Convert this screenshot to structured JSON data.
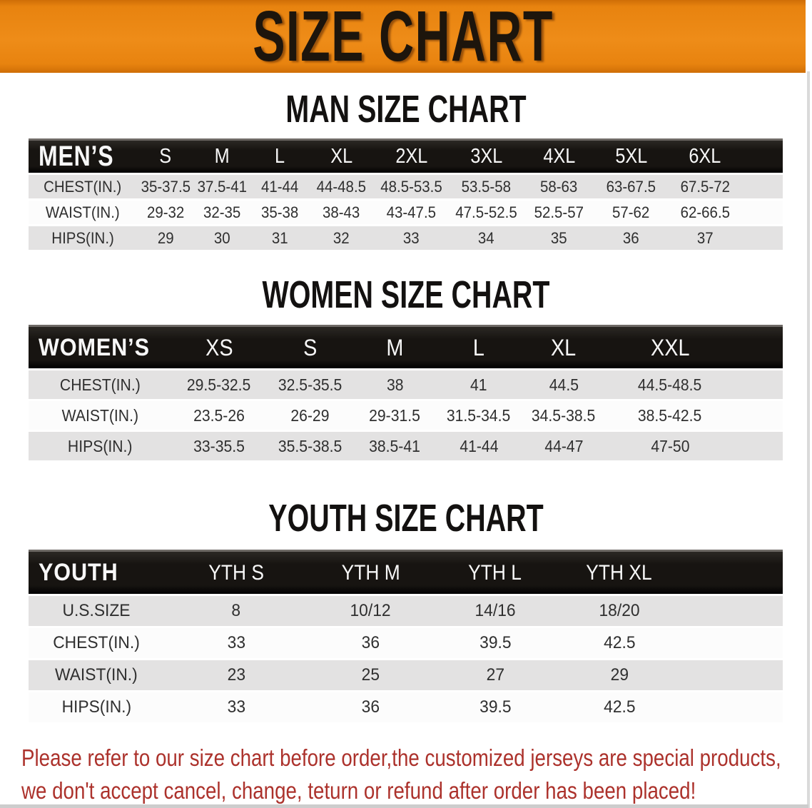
{
  "banner": {
    "title": "SIZE CHART"
  },
  "sections": [
    {
      "title": "MAN SIZE CHART",
      "table": {
        "label": "MEN’S",
        "sizes": [
          "S",
          "M",
          "L",
          "XL",
          "2XL",
          "3XL",
          "4XL",
          "5XL",
          "6XL"
        ],
        "rows": [
          {
            "label": "CHEST(IN.)",
            "values": [
              "35-37.5",
              "37.5-41",
              "41-44",
              "44-48.5",
              "48.5-53.5",
              "53.5-58",
              "58-63",
              "63-67.5",
              "67.5-72"
            ]
          },
          {
            "label": "WAIST(IN.)",
            "values": [
              "29-32",
              "32-35",
              "35-38",
              "38-43",
              "43-47.5",
              "47.5-52.5",
              "52.5-57",
              "57-62",
              "62-66.5"
            ]
          },
          {
            "label": "HIPS(IN.)",
            "values": [
              "29",
              "30",
              "31",
              "32",
              "33",
              "34",
              "35",
              "36",
              "37"
            ]
          }
        ]
      }
    },
    {
      "title": "WOMEN SIZE CHART",
      "table": {
        "label": "WOMEN’S",
        "sizes": [
          "XS",
          "S",
          "M",
          "L",
          "XL",
          "XXL"
        ],
        "rows": [
          {
            "label": "CHEST(IN.)",
            "values": [
              "29.5-32.5",
              "32.5-35.5",
              "38",
              "41",
              "44.5",
              "44.5-48.5"
            ]
          },
          {
            "label": "WAIST(IN.)",
            "values": [
              "23.5-26",
              "26-29",
              "29-31.5",
              "31.5-34.5",
              "34.5-38.5",
              "38.5-42.5"
            ]
          },
          {
            "label": "HIPS(IN.)",
            "values": [
              "33-35.5",
              "35.5-38.5",
              "38.5-41",
              "41-44",
              "44-47",
              "47-50"
            ]
          }
        ]
      }
    },
    {
      "title": "YOUTH SIZE CHART",
      "table": {
        "label": "YOUTH",
        "sizes": [
          "YTH S",
          "YTH M",
          "YTH L",
          "YTH XL"
        ],
        "rows": [
          {
            "label": "U.S.SIZE",
            "values": [
              "8",
              "10/12",
              "14/16",
              "18/20"
            ]
          },
          {
            "label": "CHEST(IN.)",
            "values": [
              "33",
              "36",
              "39.5",
              "42.5"
            ]
          },
          {
            "label": "WAIST(IN.)",
            "values": [
              "23",
              "25",
              "27",
              "29"
            ]
          },
          {
            "label": "HIPS(IN.)",
            "values": [
              "33",
              "36",
              "39.5",
              "42.5"
            ]
          }
        ]
      }
    }
  ],
  "note": {
    "lines": [
      "Please refer to our size chart before order,the customized jerseys are special products,",
      "we don't accept cancel, change, teturn or refund after order has been placed!"
    ]
  },
  "colors": {
    "banner_bg": "#e8830f",
    "banner_edge": "#cf6e06",
    "banner_text": "#1d150c",
    "header_bg": "#171411",
    "header_text": "#f7f7f7",
    "row_gray": "#e3e2e2",
    "note_red": "#ac322c"
  }
}
